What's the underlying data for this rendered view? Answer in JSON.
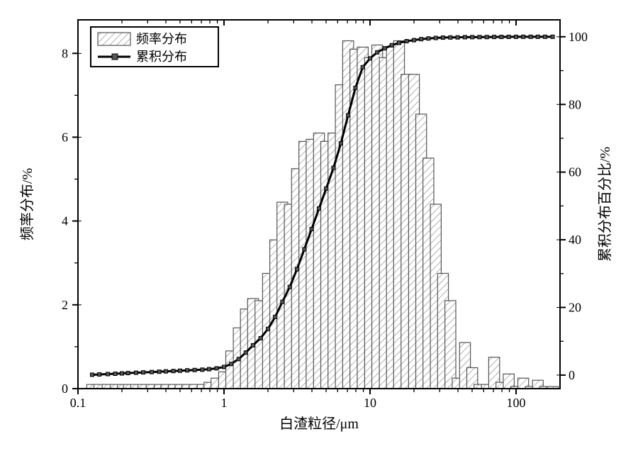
{
  "chart": {
    "type": "bar+line-dual-axis",
    "background_color": "#ffffff",
    "plot_border_color": "#000000",
    "plot_border_width": 2,
    "xlabel": "白渣粒径/μm",
    "ylabel_left": "频率分布/%",
    "ylabel_right": "累积分布百分比/%",
    "label_fontsize": 20,
    "tick_fontsize": 18,
    "x_scale": "log",
    "xlim": [
      0.1,
      200
    ],
    "x_major_ticks": [
      0.1,
      1,
      10,
      100
    ],
    "x_major_labels": [
      "0.1",
      "1",
      "10",
      "100"
    ],
    "yleft_lim": [
      0,
      8.8
    ],
    "yleft_ticks": [
      0,
      2,
      4,
      6,
      8
    ],
    "yright_lim": [
      -4,
      105
    ],
    "yright_ticks": [
      0,
      20,
      40,
      60,
      80,
      100
    ],
    "bars": {
      "x": [
        0.125,
        0.14,
        0.16,
        0.18,
        0.2,
        0.22,
        0.25,
        0.28,
        0.32,
        0.36,
        0.4,
        0.45,
        0.5,
        0.56,
        0.63,
        0.71,
        0.79,
        0.89,
        1.0,
        1.12,
        1.26,
        1.41,
        1.58,
        1.78,
        2.0,
        2.24,
        2.51,
        2.82,
        3.16,
        3.55,
        3.98,
        4.47,
        5.01,
        5.62,
        6.31,
        7.08,
        7.94,
        8.91,
        10.0,
        11.2,
        12.6,
        14.1,
        15.8,
        17.8,
        20.0,
        22.4,
        25.1,
        28.2,
        31.6,
        35.5,
        39.8,
        44.7,
        50.1,
        56.2,
        63.1,
        70.8,
        79.4,
        89.1,
        100.0,
        112.0,
        126.0,
        141.0,
        158.0,
        178.0
      ],
      "y": [
        0.1,
        0.1,
        0.1,
        0.1,
        0.1,
        0.1,
        0.1,
        0.1,
        0.1,
        0.1,
        0.1,
        0.1,
        0.1,
        0.1,
        0.1,
        0.1,
        0.15,
        0.25,
        0.4,
        0.9,
        1.45,
        1.9,
        2.15,
        2.1,
        2.75,
        3.55,
        4.45,
        4.4,
        5.25,
        5.9,
        5.95,
        6.1,
        5.9,
        6.1,
        7.25,
        8.3,
        8.1,
        8.15,
        7.9,
        8.2,
        7.9,
        8.15,
        8.3,
        7.5,
        7.5,
        6.55,
        5.5,
        4.4,
        2.75,
        2.1,
        0.25,
        1.1,
        0.5,
        0.1,
        0.1,
        0.75,
        0.15,
        0.35,
        0.05,
        0.25,
        0.05,
        0.2,
        0.05,
        0.05
      ],
      "fill_color": "#ffffff",
      "stroke_color": "#555555",
      "hatch_color": "#888888",
      "bar_rel_width": 0.75
    },
    "line": {
      "stroke_color": "#000000",
      "stroke_width": 3,
      "marker_fill": "#555555",
      "marker_stroke": "#000000",
      "marker_size": 5,
      "x": [
        0.125,
        0.14,
        0.16,
        0.18,
        0.2,
        0.22,
        0.25,
        0.28,
        0.32,
        0.36,
        0.4,
        0.45,
        0.5,
        0.56,
        0.63,
        0.71,
        0.79,
        0.89,
        1.0,
        1.12,
        1.26,
        1.41,
        1.58,
        1.78,
        2.0,
        2.24,
        2.51,
        2.82,
        3.16,
        3.55,
        3.98,
        4.47,
        5.01,
        5.62,
        6.31,
        7.08,
        7.94,
        8.91,
        10.0,
        11.2,
        12.6,
        14.1,
        15.8,
        17.8,
        20.0,
        22.4,
        25.1,
        28.2,
        31.6,
        35.5,
        39.8,
        44.7,
        50.1,
        56.2,
        63.1,
        70.8,
        79.4,
        89.1,
        100.0,
        112.0,
        126.0,
        141.0,
        158.0,
        178.0
      ],
      "y": [
        0.1,
        0.2,
        0.3,
        0.4,
        0.5,
        0.6,
        0.7,
        0.8,
        0.9,
        1.0,
        1.1,
        1.2,
        1.3,
        1.4,
        1.5,
        1.6,
        1.75,
        2.0,
        2.4,
        3.3,
        4.75,
        6.65,
        8.8,
        10.9,
        13.65,
        17.2,
        21.65,
        26.05,
        31.3,
        37.2,
        43.15,
        49.25,
        55.15,
        61.25,
        68.5,
        76.8,
        84.9,
        91.0,
        93.6,
        95.4,
        96.6,
        97.5,
        98.2,
        98.7,
        99.0,
        99.3,
        99.5,
        99.65,
        99.75,
        99.8,
        99.82,
        99.88,
        99.9,
        99.91,
        99.92,
        99.95,
        99.96,
        99.98,
        99.99,
        100,
        100,
        100,
        100,
        100
      ]
    },
    "legend": {
      "frame_color": "#000000",
      "frame_width": 2,
      "background": "#ffffff",
      "entries": [
        {
          "type": "bar",
          "label": "频率分布"
        },
        {
          "type": "line",
          "label": "累积分布"
        }
      ]
    }
  }
}
